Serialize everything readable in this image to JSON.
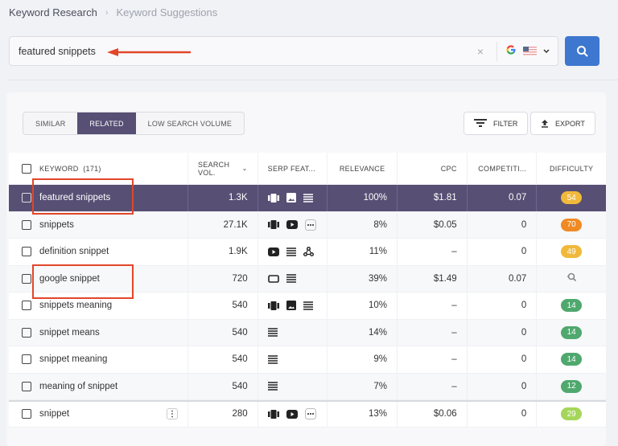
{
  "breadcrumb": {
    "items": [
      "Keyword Research",
      "Keyword Suggestions"
    ],
    "separator": "›"
  },
  "search": {
    "value": "featured snippets",
    "clear_icon": "×",
    "engine": "G",
    "country": "US",
    "chevron": "⌄"
  },
  "tabs": [
    {
      "label": "SIMILAR",
      "active": false
    },
    {
      "label": "RELATED",
      "active": true
    },
    {
      "label": "LOW SEARCH VOLUME",
      "active": false
    }
  ],
  "toolbar": {
    "filter_label": "FILTER",
    "export_label": "EXPORT"
  },
  "table": {
    "headers": {
      "keyword": "KEYWORD",
      "keyword_count": "(171)",
      "search_vol": "SEARCH VOL.",
      "serp": "SERP FEAT...",
      "relevance": "RELEVANCE",
      "cpc": "CPC",
      "competition": "COMPETITI...",
      "difficulty": "DIFFICULTY"
    },
    "rows": [
      {
        "keyword": "featured snippets",
        "vol": "1.3K",
        "serp": [
          "carousel",
          "image",
          "list"
        ],
        "rel": "100%",
        "cpc": "$1.81",
        "comp": "0.07",
        "diff": "54",
        "color": "#f0b93b"
      },
      {
        "keyword": "snippets",
        "vol": "27.1K",
        "serp": [
          "carousel",
          "video",
          "more"
        ],
        "rel": "8%",
        "cpc": "$0.05",
        "comp": "0",
        "diff": "70",
        "color": "#f08a24"
      },
      {
        "keyword": "definition snippet",
        "vol": "1.9K",
        "serp": [
          "video",
          "list",
          "graph"
        ],
        "rel": "11%",
        "cpc": "–",
        "comp": "0",
        "diff": "49",
        "color": "#f0b93b"
      },
      {
        "keyword": "google snippet",
        "vol": "720",
        "serp": [
          "featured",
          "list"
        ],
        "rel": "39%",
        "cpc": "$1.49",
        "comp": "0.07",
        "diff": "",
        "color": ""
      },
      {
        "keyword": "snippets meaning",
        "vol": "540",
        "serp": [
          "carousel",
          "image",
          "list"
        ],
        "rel": "10%",
        "cpc": "–",
        "comp": "0",
        "diff": "14",
        "color": "#4fa86e"
      },
      {
        "keyword": "snippet means",
        "vol": "540",
        "serp": [
          "list"
        ],
        "rel": "14%",
        "cpc": "–",
        "comp": "0",
        "diff": "14",
        "color": "#4fa86e"
      },
      {
        "keyword": "snippet meaning",
        "vol": "540",
        "serp": [
          "list"
        ],
        "rel": "9%",
        "cpc": "–",
        "comp": "0",
        "diff": "14",
        "color": "#4fa86e"
      },
      {
        "keyword": "meaning of snippet",
        "vol": "540",
        "serp": [
          "list"
        ],
        "rel": "7%",
        "cpc": "–",
        "comp": "0",
        "diff": "12",
        "color": "#4fa86e"
      },
      {
        "keyword": "snippet",
        "vol": "280",
        "serp": [
          "carousel",
          "video",
          "more"
        ],
        "rel": "13%",
        "cpc": "$0.06",
        "comp": "0",
        "diff": "29",
        "color": "#a5d65a"
      }
    ]
  },
  "colors": {
    "accent": "#3d77d0",
    "selected_row": "#574f74",
    "annotation": "#e2462a"
  }
}
